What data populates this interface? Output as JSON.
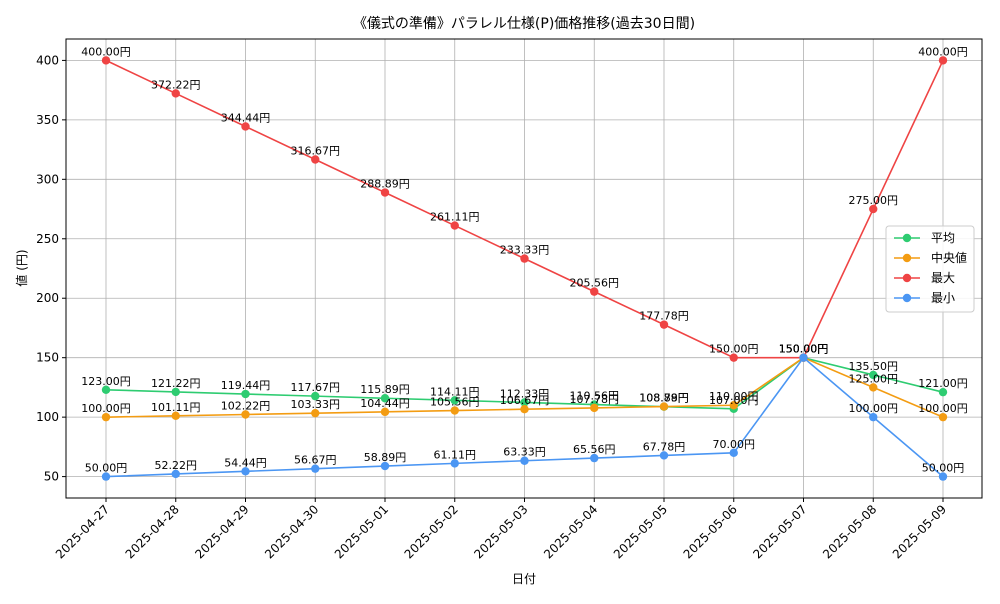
{
  "chart_data": {
    "type": "line",
    "title": "《儀式の準備》パラレル仕様(P)価格推移(過去30日間)",
    "xlabel": "日付",
    "ylabel": "値 (円)",
    "ylim": [
      32,
      418
    ],
    "yticks": [
      50,
      100,
      150,
      200,
      250,
      300,
      350,
      400
    ],
    "grid": true,
    "legend_position": "right",
    "value_suffix": "円",
    "x": [
      "2025-04-27",
      "2025-04-28",
      "2025-04-29",
      "2025-04-30",
      "2025-05-01",
      "2025-05-02",
      "2025-05-03",
      "2025-05-04",
      "2025-05-05",
      "2025-05-06",
      "2025-05-07",
      "2025-05-08",
      "2025-05-09"
    ],
    "series": [
      {
        "name": "平均",
        "color": "#2ecc71",
        "values": [
          123.0,
          121.22,
          119.44,
          117.67,
          115.89,
          114.11,
          112.33,
          110.56,
          108.78,
          107.0,
          150.0,
          135.5,
          121.0
        ],
        "labels": [
          "123.00円",
          "121.22円",
          "119.44円",
          "117.67円",
          "115.89円",
          "114.11円",
          "112.33円",
          "110.56円",
          "108.78円",
          "107.00円",
          "150.00円",
          "135.50円",
          "121.00円"
        ]
      },
      {
        "name": "中央値",
        "color": "#f39c12",
        "values": [
          100.0,
          101.11,
          102.22,
          103.33,
          104.44,
          105.56,
          106.67,
          107.78,
          108.89,
          110.0,
          150.0,
          125.0,
          100.0
        ],
        "labels": [
          "100.00円",
          "101.11円",
          "102.22円",
          "103.33円",
          "104.44円",
          "105.56円",
          "106.67円",
          "107.78円",
          "108.89円",
          "110.00円",
          "150.00円",
          "125.00円",
          "100.00円"
        ]
      },
      {
        "name": "最大",
        "color": "#ef4444",
        "values": [
          400.0,
          372.22,
          344.44,
          316.67,
          288.89,
          261.11,
          233.33,
          205.56,
          177.78,
          150.0,
          150.0,
          275.0,
          400.0
        ],
        "labels": [
          "400.00円",
          "372.22円",
          "344.44円",
          "316.67円",
          "288.89円",
          "261.11円",
          "233.33円",
          "205.56円",
          "177.78円",
          "150.00円",
          "150.00円",
          "275.00円",
          "400.00円"
        ]
      },
      {
        "name": "最小",
        "color": "#4b96f3",
        "values": [
          50.0,
          52.22,
          54.44,
          56.67,
          58.89,
          61.11,
          63.33,
          65.56,
          67.78,
          70.0,
          150.0,
          100.0,
          50.0
        ],
        "labels": [
          "50.00円",
          "52.22円",
          "54.44円",
          "56.67円",
          "58.89円",
          "61.11円",
          "63.33円",
          "65.56円",
          "67.78円",
          "70.00円",
          "150.00円",
          "100.00円",
          "50.00円"
        ]
      }
    ]
  }
}
